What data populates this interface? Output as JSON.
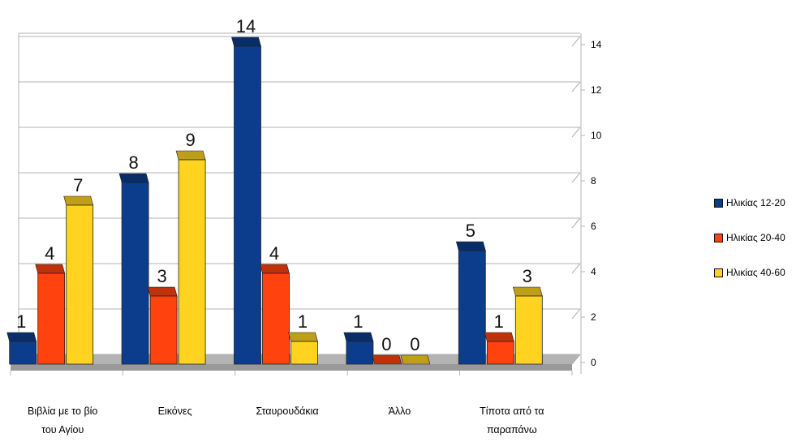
{
  "chart_data": {
    "type": "bar",
    "categories": [
      "Βιβλία με το βίο\nτου Αγίου",
      "Εικόνες",
      "Σταυρουδάκια",
      "Άλλο",
      "Τίποτα από τα\nπαραπάνω"
    ],
    "series": [
      {
        "name": "Ηλικίας 12-20",
        "values": [
          1,
          8,
          14,
          1,
          5
        ],
        "color": "#0b3d8c"
      },
      {
        "name": "Ηλικίας 20-40",
        "values": [
          4,
          3,
          4,
          0,
          1
        ],
        "color": "#ff420e"
      },
      {
        "name": "Ηλικίας 40-60",
        "values": [
          7,
          9,
          1,
          0,
          3
        ],
        "color": "#ffd320"
      }
    ],
    "ylim": [
      0,
      14
    ],
    "yticks": [
      0,
      2,
      4,
      6,
      8,
      10,
      12,
      14
    ],
    "grid": true,
    "legend": "right",
    "data_labels": true,
    "three_d": true
  }
}
